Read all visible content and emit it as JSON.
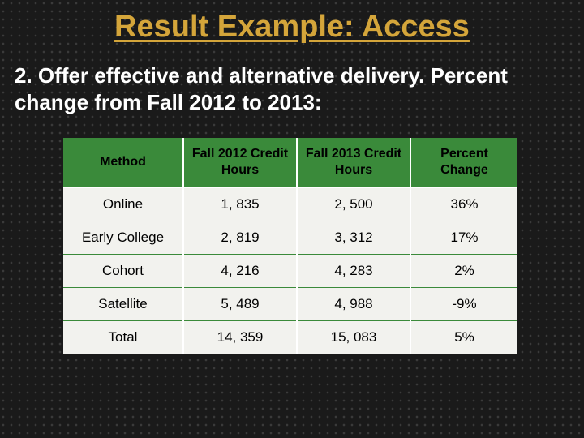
{
  "title": "Result Example: Access",
  "subtitle": "2. Offer effective and alternative delivery. Percent change from Fall 2012 to 2013:",
  "table": {
    "header_bg": "#3a8a3a",
    "row_bg": "#f2f2ee",
    "border_color": "#3a8a3a",
    "columns": [
      {
        "label": "Method",
        "width": 148
      },
      {
        "label": "Fall 2012 Credit Hours",
        "width": 140
      },
      {
        "label": "Fall 2013 Credit Hours",
        "width": 140
      },
      {
        "label": "Percent Change",
        "width": 132
      }
    ],
    "rows": [
      {
        "method": "Online",
        "f2012": "1, 835",
        "f2013": "2, 500",
        "pct": "36%"
      },
      {
        "method": "Early College",
        "f2012": "2, 819",
        "f2013": "3, 312",
        "pct": "17%"
      },
      {
        "method": "Cohort",
        "f2012": "4, 216",
        "f2013": "4, 283",
        "pct": "2%"
      },
      {
        "method": "Satellite",
        "f2012": "5, 489",
        "f2013": "4, 988",
        "pct": "-9%"
      },
      {
        "method": "Total",
        "f2012": "14, 359",
        "f2013": "15, 083",
        "pct": "5%"
      }
    ]
  },
  "colors": {
    "title": "#d4a53a",
    "subtitle": "#ffffff",
    "background": "#1a1a1a",
    "dot": "#3a3a3a"
  },
  "fonts": {
    "title_size_pt": 38,
    "subtitle_size_pt": 26,
    "header_size_pt": 16,
    "cell_size_pt": 17
  }
}
